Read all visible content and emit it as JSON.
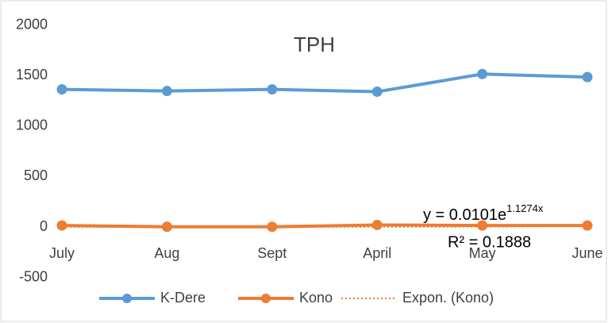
{
  "chart_data": {
    "type": "line",
    "title": "TPH",
    "categories": [
      "July",
      "Aug",
      "Sept",
      "April",
      "May",
      "June"
    ],
    "series": [
      {
        "name": "K-Dere",
        "color": "#5b9bd5",
        "values": [
          1363,
          1347,
          1363,
          1340,
          1515,
          1485
        ],
        "markers": true
      },
      {
        "name": "Kono",
        "color": "#ed7d31",
        "values": [
          15,
          2,
          2,
          20,
          15,
          15
        ],
        "markers": true
      },
      {
        "name": "Expon. (Kono)",
        "color": "#ed7d31",
        "values": [
          0.03,
          0.1,
          0.3,
          0.92,
          2.83,
          8.74
        ],
        "dashed": true
      }
    ],
    "ylim": [
      -500,
      2000
    ],
    "yticks": [
      -500,
      0,
      500,
      1000,
      1500,
      2000
    ],
    "grid": false,
    "legend": "bottom",
    "annotations": [
      {
        "text": "y = 0.0101e",
        "exponent": "1.1274x"
      },
      {
        "text": "R² = 0.1888"
      }
    ]
  }
}
